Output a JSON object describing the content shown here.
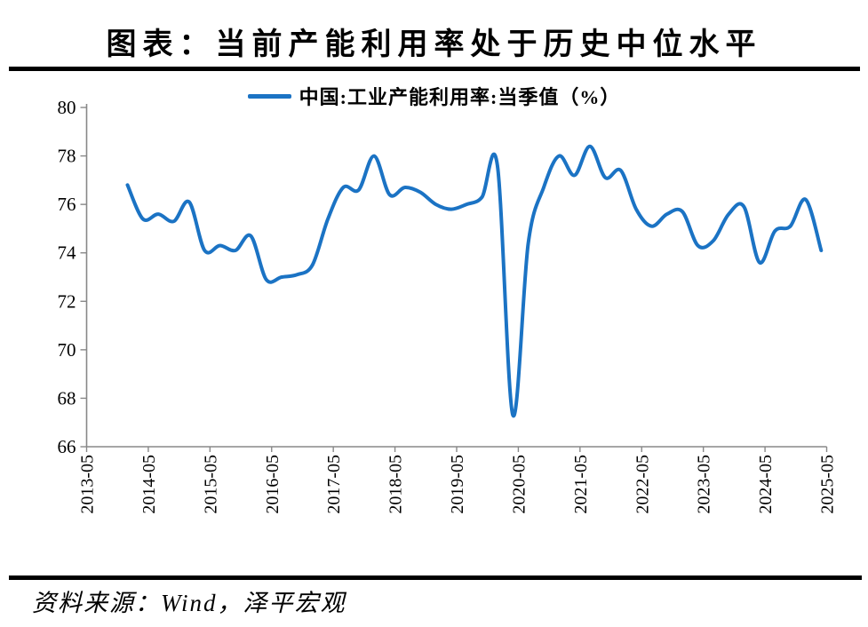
{
  "header": {
    "title": "图表：当前产能利用率处于历史中位水平"
  },
  "legend": {
    "label": "中国:工业产能利用率:当季值（%）"
  },
  "footer": {
    "source": "资料来源：Wind，泽平宏观"
  },
  "colors": {
    "line": "#1B73C4",
    "axis": "#888888",
    "text": "#000000"
  },
  "chart_data": {
    "type": "line",
    "title": "图表：当前产能利用率处于历史中位水平",
    "xlabel": "",
    "ylabel": "",
    "ylim": [
      66,
      80
    ],
    "y_ticks": [
      80,
      78,
      76,
      74,
      72,
      70,
      68,
      66
    ],
    "x_tick_labels": [
      "2013-05",
      "2014-05",
      "2015-05",
      "2016-05",
      "2017-05",
      "2018-05",
      "2019-05",
      "2020-05",
      "2021-05",
      "2022-05",
      "2023-05",
      "2024-05",
      "2025-05"
    ],
    "grid": false,
    "legend_position": "top",
    "series": [
      {
        "name": "中国:工业产能利用率:当季值（%）",
        "color": "#1B73C4",
        "dates": [
          "2013-12",
          "2014-03",
          "2014-06",
          "2014-09",
          "2014-12",
          "2015-03",
          "2015-06",
          "2015-09",
          "2015-12",
          "2016-03",
          "2016-06",
          "2016-09",
          "2016-12",
          "2017-03",
          "2017-06",
          "2017-09",
          "2017-12",
          "2018-03",
          "2018-06",
          "2018-09",
          "2018-12",
          "2019-03",
          "2019-06",
          "2019-09",
          "2019-12",
          "2020-03",
          "2020-06",
          "2020-09",
          "2020-12",
          "2021-03",
          "2021-06",
          "2021-09",
          "2021-12",
          "2022-03",
          "2022-06",
          "2022-09",
          "2022-12",
          "2023-03",
          "2023-06",
          "2023-09",
          "2023-12",
          "2024-03",
          "2024-06",
          "2024-09",
          "2024-12",
          "2025-03"
        ],
        "values": [
          76.8,
          75.4,
          75.6,
          75.3,
          76.1,
          74.1,
          74.3,
          74.1,
          74.7,
          72.9,
          73.0,
          73.1,
          73.5,
          75.4,
          76.7,
          76.6,
          78.0,
          76.4,
          76.7,
          76.5,
          76.0,
          75.8,
          76.0,
          76.3,
          77.6,
          67.3,
          74.4,
          76.7,
          78.0,
          77.2,
          78.4,
          77.1,
          77.4,
          75.8,
          75.1,
          75.6,
          75.7,
          74.3,
          74.5,
          75.6,
          75.9,
          73.6,
          74.9,
          75.1,
          76.2,
          74.1
        ]
      }
    ]
  }
}
